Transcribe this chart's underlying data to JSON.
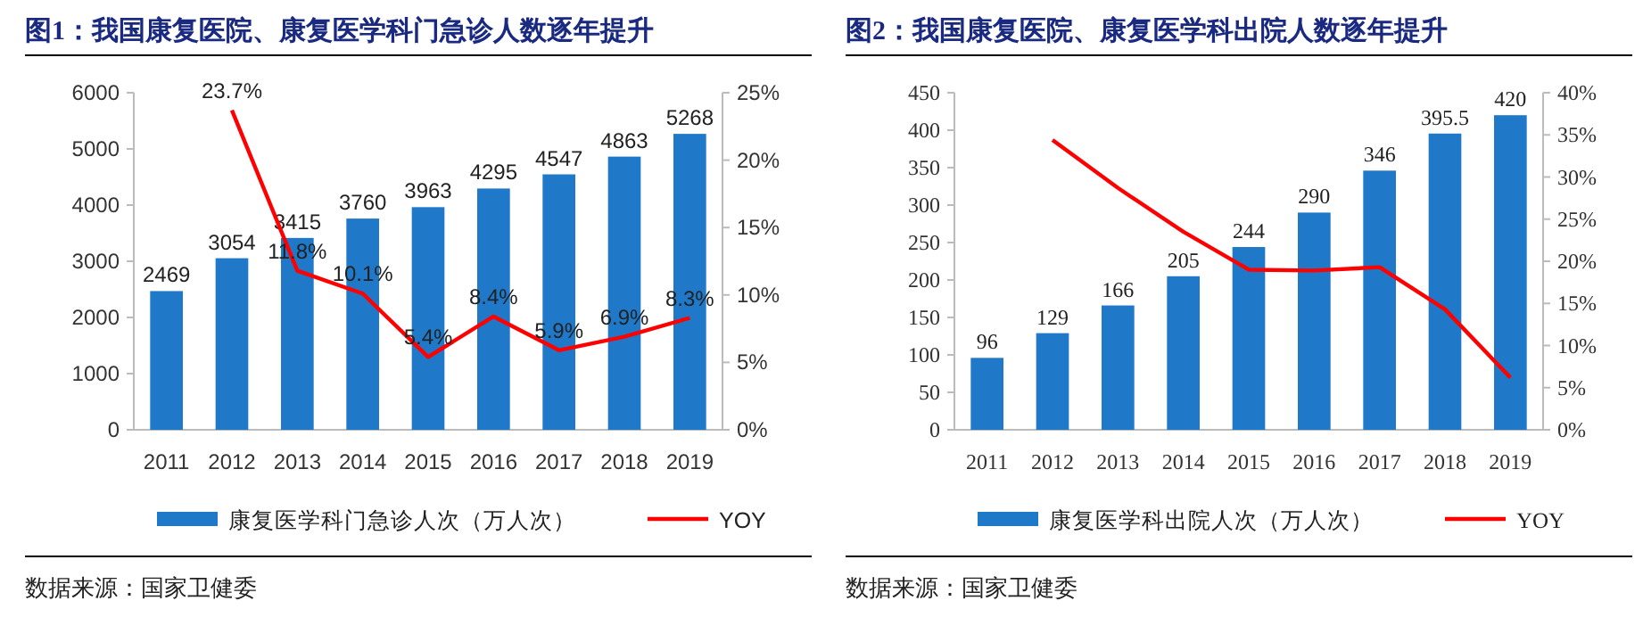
{
  "chart_data": [
    {
      "type": "bar",
      "title": "图1：我国康复医院、康复医学科门急诊人数逐年提升",
      "categories": [
        "2011",
        "2012",
        "2013",
        "2014",
        "2015",
        "2016",
        "2017",
        "2018",
        "2019"
      ],
      "series": [
        {
          "name": "康复医学科门急诊人次（万人次）",
          "color": "#1f78c8",
          "values": [
            2469,
            3054,
            3415,
            3760,
            3963,
            4295,
            4547,
            4863,
            5268
          ],
          "value_labels": [
            "2469",
            "3054",
            "3415",
            "3760",
            "3963",
            "4295",
            "4547",
            "4863",
            "5268"
          ]
        },
        {
          "name": "YOY",
          "type": "line",
          "axis": "y2",
          "color": "#ff0000",
          "values": [
            null,
            23.7,
            11.8,
            10.1,
            5.4,
            8.4,
            5.9,
            6.9,
            8.3
          ],
          "value_labels": [
            null,
            "23.7%",
            "11.8%",
            "10.1%",
            "5.4%",
            "8.4%",
            "5.9%",
            "6.9%",
            "8.3%"
          ]
        }
      ],
      "ylim": [
        0,
        6000
      ],
      "yticks": [
        0,
        1000,
        2000,
        3000,
        4000,
        5000,
        6000
      ],
      "y2lim": [
        0,
        25
      ],
      "y2ticks": [
        {
          "value": 0,
          "label": "0%"
        },
        {
          "value": 5,
          "label": "5%"
        },
        {
          "value": 10,
          "label": "10%"
        },
        {
          "value": 15,
          "label": "15%"
        },
        {
          "value": 20,
          "label": "20%"
        },
        {
          "value": 25,
          "label": "25%"
        }
      ],
      "legend": "bottom",
      "annotations": [
        "数据来源：国家卫健委"
      ]
    },
    {
      "type": "bar",
      "title": "图2：我国康复医院、康复医学科出院人数逐年提升",
      "categories": [
        "2011",
        "2012",
        "2013",
        "2014",
        "2015",
        "2016",
        "2017",
        "2018",
        "2019"
      ],
      "series": [
        {
          "name": "康复医学科出院人次（万人次）",
          "color": "#1f78c8",
          "values": [
            96,
            129,
            166,
            205,
            244,
            290,
            346,
            395.5,
            420
          ],
          "value_labels": [
            "96",
            "129",
            "166",
            "205",
            "244",
            "290",
            "346",
            "395.5",
            "420"
          ]
        },
        {
          "name": "YOY",
          "type": "line",
          "axis": "y2",
          "color": "#ff0000",
          "values": [
            null,
            34.4,
            28.7,
            23.5,
            19.0,
            18.9,
            19.3,
            14.3,
            6.2
          ]
        }
      ],
      "ylim": [
        0,
        450
      ],
      "yticks": [
        0,
        50,
        100,
        150,
        200,
        250,
        300,
        350,
        400,
        450
      ],
      "y2lim": [
        0,
        40
      ],
      "y2ticks": [
        {
          "value": 0,
          "label": "0%"
        },
        {
          "value": 5,
          "label": "5%"
        },
        {
          "value": 10,
          "label": "10%"
        },
        {
          "value": 15,
          "label": "15%"
        },
        {
          "value": 20,
          "label": "20%"
        },
        {
          "value": 25,
          "label": "25%"
        },
        {
          "value": 30,
          "label": "30%"
        },
        {
          "value": 35,
          "label": "35%"
        },
        {
          "value": 40,
          "label": "40%"
        }
      ],
      "legend": "bottom",
      "annotations": [
        "数据来源：国家卫健委"
      ]
    }
  ]
}
